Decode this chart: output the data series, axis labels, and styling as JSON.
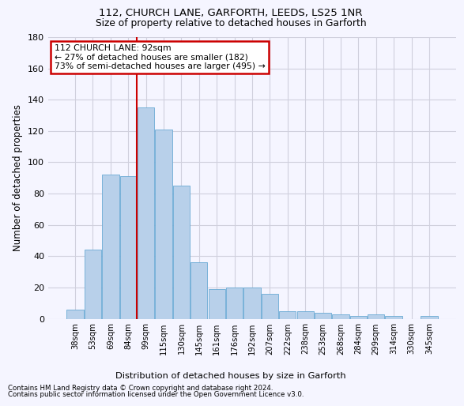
{
  "title1": "112, CHURCH LANE, GARFORTH, LEEDS, LS25 1NR",
  "title2": "Size of property relative to detached houses in Garforth",
  "xlabel": "Distribution of detached houses by size in Garforth",
  "ylabel": "Number of detached properties",
  "categories": [
    "38sqm",
    "53sqm",
    "69sqm",
    "84sqm",
    "99sqm",
    "115sqm",
    "130sqm",
    "145sqm",
    "161sqm",
    "176sqm",
    "192sqm",
    "207sqm",
    "222sqm",
    "238sqm",
    "253sqm",
    "268sqm",
    "284sqm",
    "299sqm",
    "314sqm",
    "330sqm",
    "345sqm"
  ],
  "values": [
    6,
    44,
    92,
    91,
    135,
    121,
    85,
    36,
    19,
    20,
    20,
    16,
    5,
    5,
    4,
    3,
    2,
    3,
    2,
    0,
    2
  ],
  "bar_color": "#b8d0ea",
  "bar_edge_color": "#6aaad4",
  "vline_x": 3.5,
  "annotation_line1": "112 CHURCH LANE: 92sqm",
  "annotation_line2": "← 27% of detached houses are smaller (182)",
  "annotation_line3": "73% of semi-detached houses are larger (495) →",
  "annotation_box_color": "#ffffff",
  "annotation_box_edge": "#cc0000",
  "vline_color": "#cc0000",
  "ylim": [
    0,
    180
  ],
  "yticks": [
    0,
    20,
    40,
    60,
    80,
    100,
    120,
    140,
    160,
    180
  ],
  "footer1": "Contains HM Land Registry data © Crown copyright and database right 2024.",
  "footer2": "Contains public sector information licensed under the Open Government Licence v3.0.",
  "bg_color": "#f5f5ff",
  "grid_color": "#d0d0dd"
}
